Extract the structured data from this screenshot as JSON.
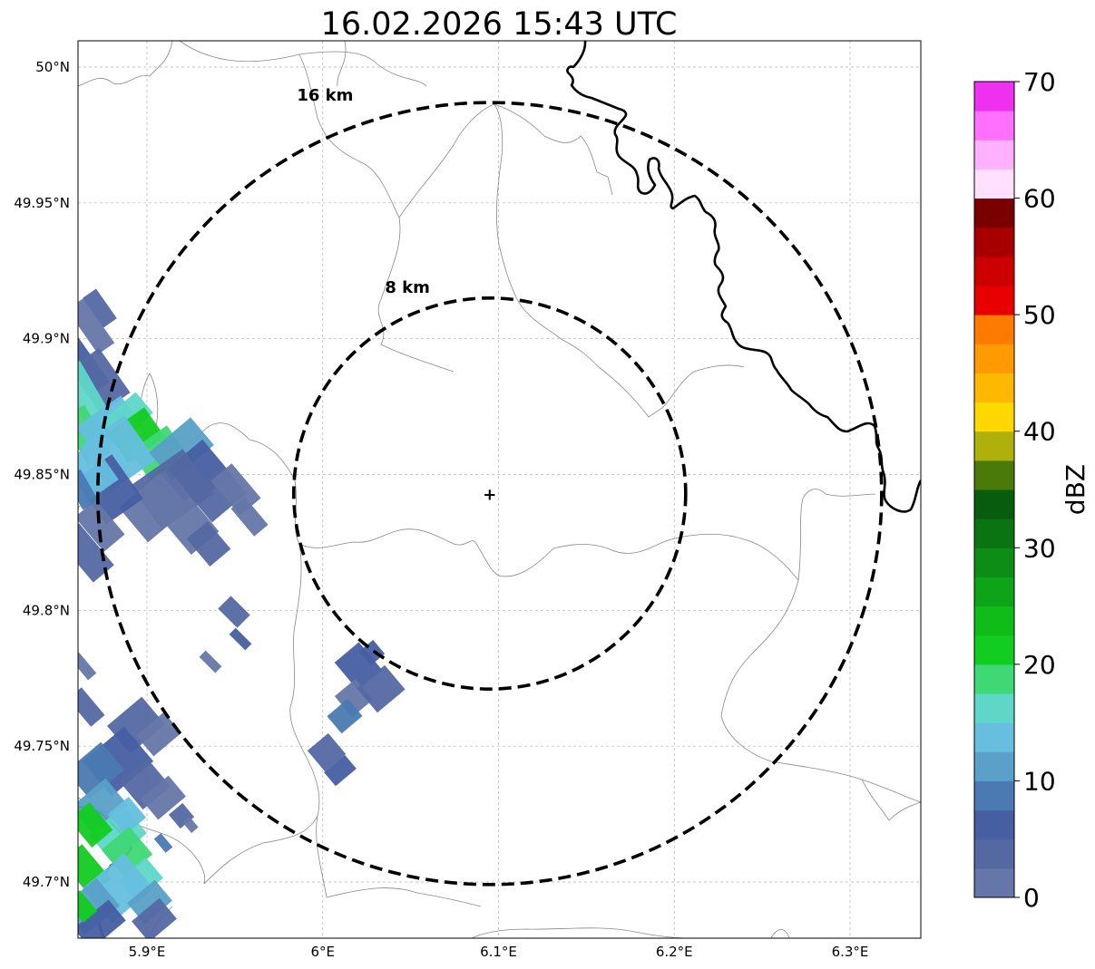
{
  "title": "16.02.2026 15:43 UTC",
  "map": {
    "lon_range": [
      5.86,
      6.34
    ],
    "lat_range": [
      49.68,
      50.01
    ],
    "lon_ticks": [
      {
        "value": 5.9,
        "label": "5.9°E"
      },
      {
        "value": 6.0,
        "label": "6°E"
      },
      {
        "value": 6.1,
        "label": "6.1°E"
      },
      {
        "value": 6.2,
        "label": "6.2°E"
      },
      {
        "value": 6.3,
        "label": "6.3°E"
      }
    ],
    "lat_ticks": [
      {
        "value": 49.7,
        "label": "49.7°N"
      },
      {
        "value": 49.75,
        "label": "49.75°N"
      },
      {
        "value": 49.8,
        "label": "49.8°N"
      },
      {
        "value": 49.85,
        "label": "49.85°N"
      },
      {
        "value": 49.9,
        "label": "49.9°N"
      },
      {
        "value": 49.95,
        "label": "49.95°N"
      },
      {
        "value": 50.0,
        "label": "50°N"
      }
    ],
    "gridlines": true,
    "radar_site": {
      "lon": 6.095,
      "lat": 49.843
    },
    "range_rings": [
      {
        "label": "8 km",
        "radius_km": 8
      },
      {
        "label": "16 km",
        "radius_km": 16
      }
    ]
  },
  "colorbar": {
    "label": "dBZ",
    "min": 0,
    "max": 70,
    "step": 2.5,
    "tick_values": [
      0,
      10,
      20,
      30,
      40,
      50,
      60,
      70
    ],
    "tick_labels": [
      "0",
      "10",
      "20",
      "30",
      "40",
      "50",
      "60",
      "70"
    ],
    "colors": [
      "#6577a8",
      "#5468a2",
      "#465fa2",
      "#4a7ab1",
      "#5aa0c8",
      "#66bfdf",
      "#5fd7c8",
      "#3ed875",
      "#12cc20",
      "#10bd18",
      "#0ea418",
      "#0d8c16",
      "#0a7412",
      "#075d0d",
      "#4a7b08",
      "#b0b00c",
      "#ffd800",
      "#ffb800",
      "#ff9a00",
      "#ff7a00",
      "#e80000",
      "#cc0000",
      "#a80000",
      "#7a0000",
      "#ffe0ff",
      "#ffb0ff",
      "#ff70ff",
      "#f030f0"
    ]
  },
  "legend_colors": {
    "border": "#000000",
    "country_border": "#000000",
    "admin_lines": "#888888",
    "grid": "#b0b0b0"
  }
}
